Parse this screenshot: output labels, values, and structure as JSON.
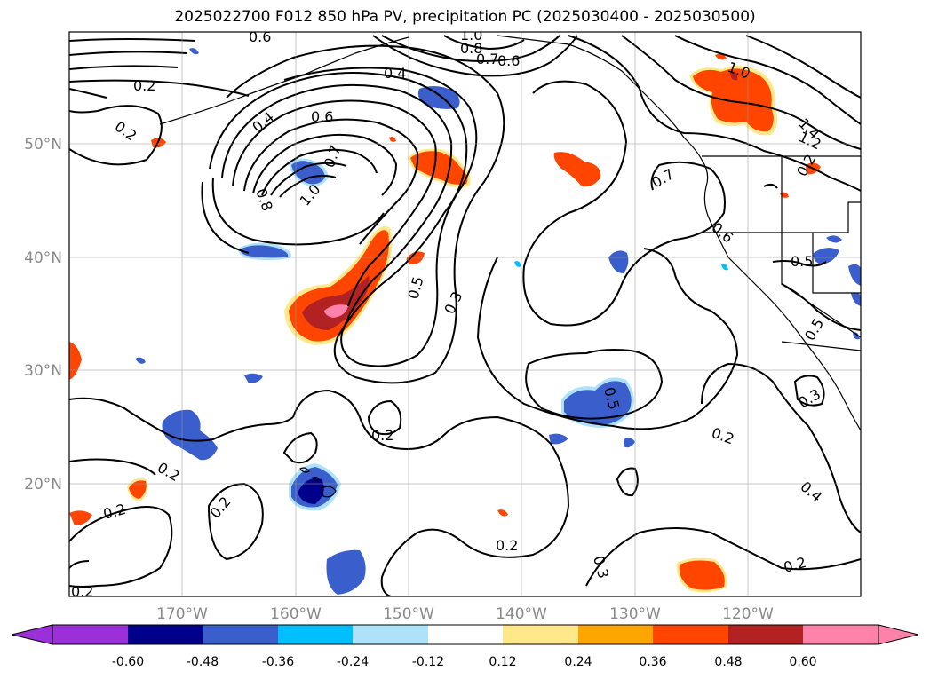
{
  "title": "2025022700 F012 850 hPa PV, precipitation PC (2025030400 - 2025030500)",
  "map": {
    "lon_ticks": [
      "170°W",
      "160°W",
      "150°W",
      "140°W",
      "130°W",
      "120°W"
    ],
    "lat_ticks": [
      "50°N",
      "40°N",
      "30°N",
      "20°N"
    ],
    "gridlines": true
  },
  "contour_labels": [
    {
      "text": "0.6"
    },
    {
      "text": "1.0"
    },
    {
      "text": "0.8"
    },
    {
      "text": "0.7"
    },
    {
      "text": "0.6"
    },
    {
      "text": "0.2"
    },
    {
      "text": "0.4"
    },
    {
      "text": "0.2"
    },
    {
      "text": "0.4"
    },
    {
      "text": "0.6"
    },
    {
      "text": "0.7"
    },
    {
      "text": "0.8"
    },
    {
      "text": "1.0"
    },
    {
      "text": "0.5"
    },
    {
      "text": "0.3"
    },
    {
      "text": "0.2"
    },
    {
      "text": "0.2"
    },
    {
      "text": "0.2"
    },
    {
      "text": "0.2"
    },
    {
      "text": "0.2"
    },
    {
      "text": "0.2"
    },
    {
      "text": "0.3"
    },
    {
      "text": "0.2"
    },
    {
      "text": "0.4"
    },
    {
      "text": "0.2"
    },
    {
      "text": "0.5"
    },
    {
      "text": "0.5"
    },
    {
      "text": "0.3"
    },
    {
      "text": "0.5"
    },
    {
      "text": "0.7"
    },
    {
      "text": "0.6"
    },
    {
      "text": "1.0"
    },
    {
      "text": "1.4"
    },
    {
      "text": "1.2"
    },
    {
      "text": "0.2"
    }
  ],
  "colorbar": {
    "levels": [
      "-0.60",
      "-0.48",
      "-0.36",
      "-0.24",
      "-0.12",
      "0.12",
      "0.24",
      "0.36",
      "0.48",
      "0.60"
    ],
    "colors": [
      "#9b30d9",
      "#00008b",
      "#3a5fcd",
      "#00bfff",
      "#aee2fa",
      "#ffffff",
      "#ffe88a",
      "#ffa500",
      "#ff4500",
      "#b22222",
      "#ff82ab"
    ]
  }
}
